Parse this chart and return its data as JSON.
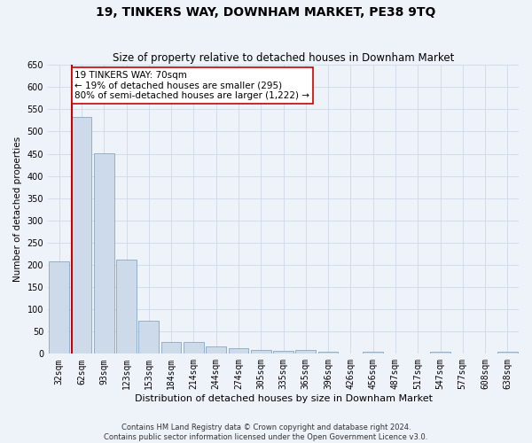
{
  "title": "19, TINKERS WAY, DOWNHAM MARKET, PE38 9TQ",
  "subtitle": "Size of property relative to detached houses in Downham Market",
  "xlabel": "Distribution of detached houses by size in Downham Market",
  "ylabel": "Number of detached properties",
  "footer_line1": "Contains HM Land Registry data © Crown copyright and database right 2024.",
  "footer_line2": "Contains public sector information licensed under the Open Government Licence v3.0.",
  "categories": [
    "32sqm",
    "62sqm",
    "93sqm",
    "123sqm",
    "153sqm",
    "184sqm",
    "214sqm",
    "244sqm",
    "274sqm",
    "305sqm",
    "335sqm",
    "365sqm",
    "396sqm",
    "426sqm",
    "456sqm",
    "487sqm",
    "517sqm",
    "547sqm",
    "577sqm",
    "608sqm",
    "638sqm"
  ],
  "values": [
    207,
    533,
    452,
    212,
    75,
    27,
    26,
    17,
    12,
    9,
    7,
    9,
    5,
    0,
    5,
    0,
    0,
    5,
    0,
    0,
    5
  ],
  "bar_color": "#ccdaea",
  "bar_edge_color": "#7799bb",
  "highlight_bar_index": 1,
  "vline_color": "#cc0000",
  "annotation_text": "19 TINKERS WAY: 70sqm\n← 19% of detached houses are smaller (295)\n80% of semi-detached houses are larger (1,222) →",
  "annotation_box_facecolor": "#ffffff",
  "annotation_box_edgecolor": "#cc0000",
  "ylim": [
    0,
    650
  ],
  "yticks": [
    0,
    50,
    100,
    150,
    200,
    250,
    300,
    350,
    400,
    450,
    500,
    550,
    600,
    650
  ],
  "grid_color": "#d0d8e8",
  "background_color": "#eef2f9",
  "title_fontsize": 10,
  "subtitle_fontsize": 8.5,
  "xlabel_fontsize": 8,
  "ylabel_fontsize": 7.5,
  "tick_fontsize": 7,
  "annotation_fontsize": 7.5,
  "footer_fontsize": 6
}
